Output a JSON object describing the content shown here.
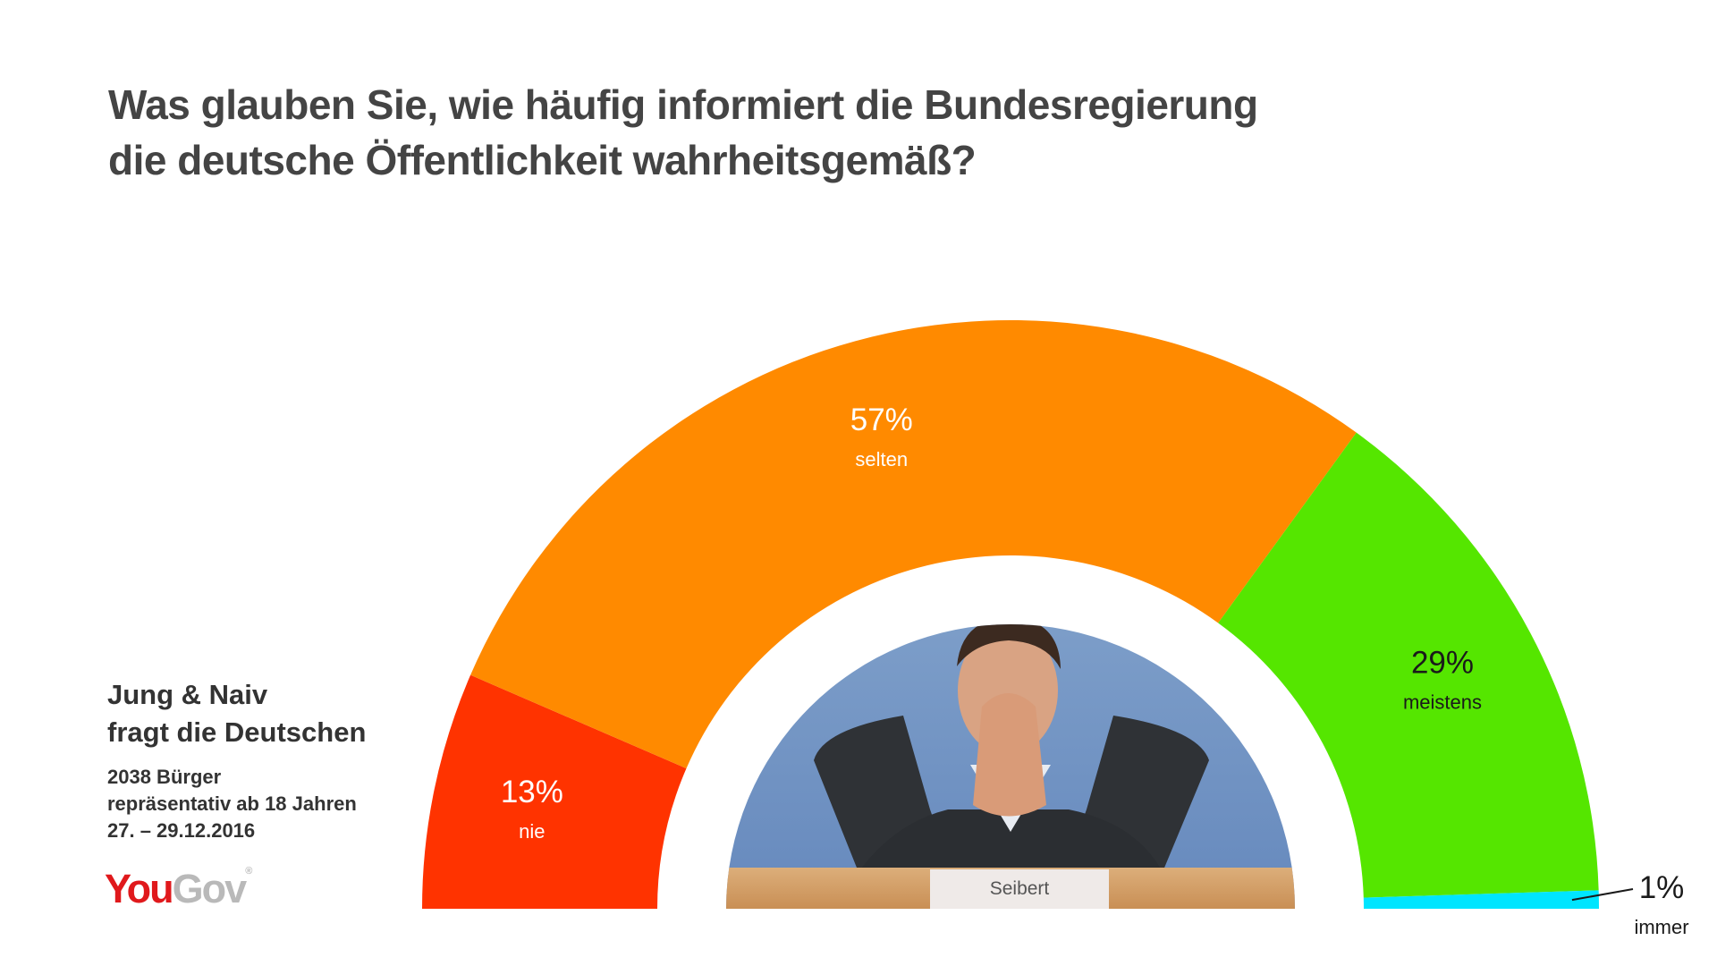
{
  "title": {
    "line1": "Was glauben Sie, wie häufig informiert die Bundesregierung",
    "line2": "die deutsche Öffentlichkeit wahrheitsgemäß?"
  },
  "info": {
    "head_line1": "Jung & Naiv",
    "head_line2": "fragt die Deutschen",
    "sample": "2038 Bürger",
    "representative": "repräsentativ ab 18 Jahren",
    "date": "27. – 29.12.2016"
  },
  "logo": {
    "you": "You",
    "gov": "Gov",
    "reg": "®"
  },
  "photo": {
    "nameplate": "Seibert"
  },
  "chart_data": {
    "type": "pie",
    "subtype": "semi-donut",
    "title": "Was glauben Sie, wie häufig informiert die Bundesregierung die deutsche Öffentlichkeit wahrheitsgemäß?",
    "categories": [
      "nie",
      "selten",
      "meistens",
      "immer"
    ],
    "values": [
      13,
      57,
      29,
      1
    ],
    "labels": [
      "13%",
      "57%",
      "29%",
      "1%"
    ],
    "colors": [
      "#ff3300",
      "#ff8a00",
      "#55e600",
      "#00e5ff"
    ],
    "label_colors": [
      "#ffffff",
      "#ffffff",
      "#1a1a1a",
      "#1a1a1a"
    ]
  }
}
